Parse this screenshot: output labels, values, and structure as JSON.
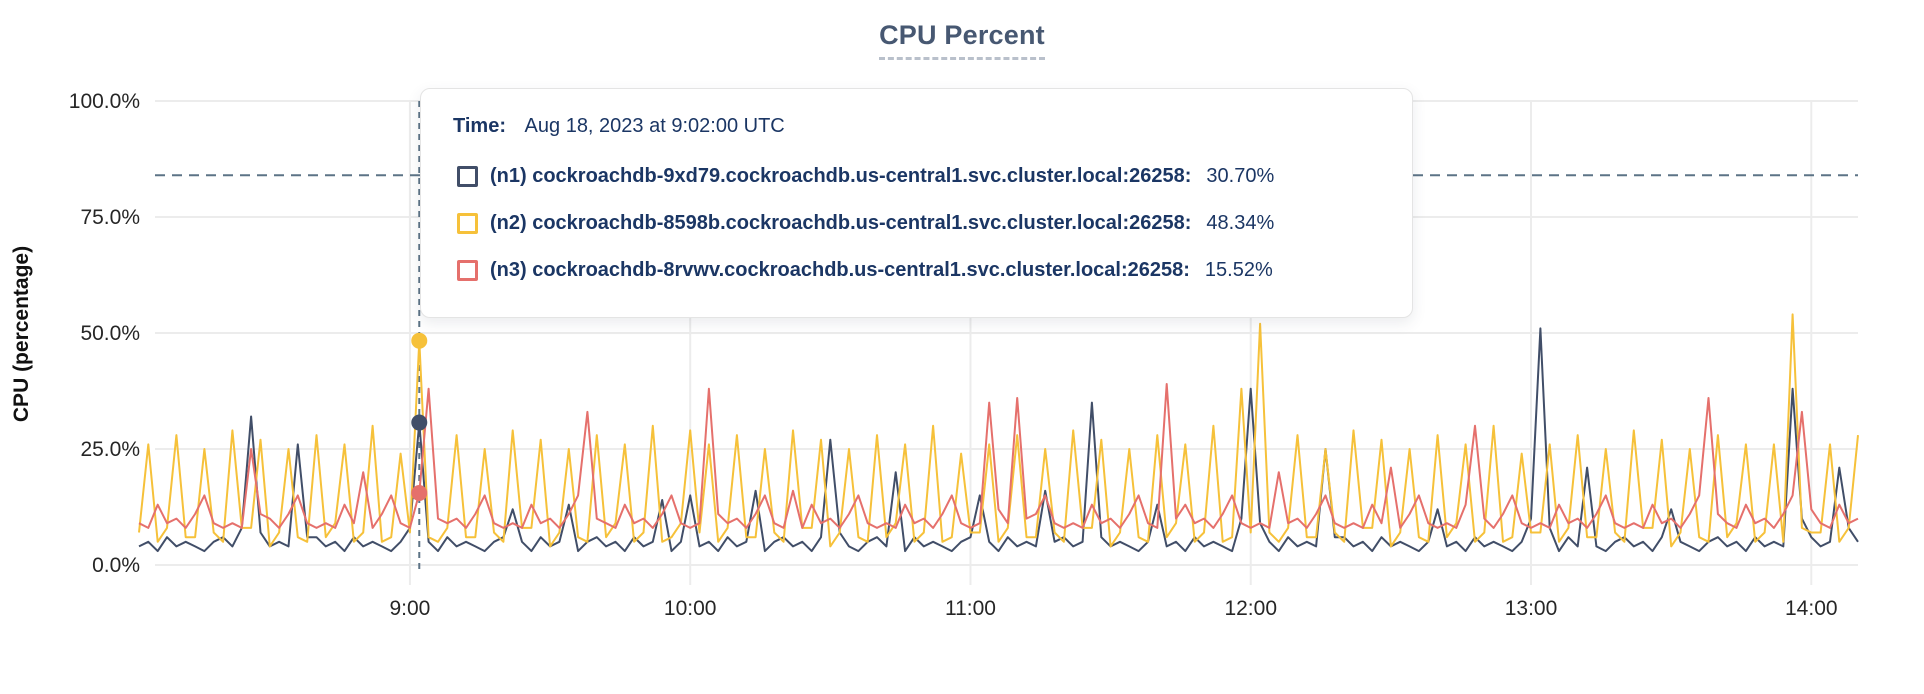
{
  "title": "CPU Percent",
  "y_axis_title": "CPU (percentage)",
  "tooltip": {
    "time_label": "Time:",
    "time_value": "Aug 18, 2023 at 9:02:00 UTC",
    "rows": [
      {
        "label": "(n1) cockroachdb-9xd79.cockroachdb.us-central1.svc.cluster.local:26258:",
        "value": "30.70%",
        "color": "#414E68"
      },
      {
        "label": "(n2) cockroachdb-8598b.cockroachdb.us-central1.svc.cluster.local:26258:",
        "value": "48.34%",
        "color": "#F6C13A"
      },
      {
        "label": "(n3) cockroachdb-8rvwv.cockroachdb.us-central1.svc.cluster.local:26258:",
        "value": "15.52%",
        "color": "#E5706C"
      }
    ]
  },
  "colors": {
    "title": "#475872",
    "grid": "#ececec",
    "dashed_guides": "#5c7386",
    "tooltip_text": "#1b3664"
  },
  "chart_data": {
    "type": "line",
    "title": "CPU Percent",
    "xlabel": "",
    "ylabel": "CPU (percentage)",
    "ylim": [
      0,
      100
    ],
    "y_tick_values": [
      0,
      25,
      50,
      75,
      100
    ],
    "y_tick_labels": [
      "0.0%",
      "25.0%",
      "50.0%",
      "75.0%",
      "100.0%"
    ],
    "x_tick_labels": [
      "9:00",
      "10:00",
      "11:00",
      "12:00",
      "13:00",
      "14:00"
    ],
    "x_tick_minutes": [
      540,
      600,
      660,
      720,
      780,
      840
    ],
    "x_range_minutes": [
      482,
      850
    ],
    "x_start_minute": 482,
    "x_step_minutes": 2,
    "grid": true,
    "legend_position": "tooltip-overlay",
    "threshold_line_percent": 84,
    "crosshair": {
      "minute": 542,
      "time_label": "Aug 18, 2023 at 9:02:00 UTC",
      "values": [
        30.7,
        48.34,
        15.52
      ]
    },
    "series": [
      {
        "name": "(n1) cockroachdb-9xd79.cockroachdb.us-central1.svc.cluster.local:26258",
        "color": "#414E68",
        "values": [
          4,
          5,
          3,
          6,
          4,
          5,
          4,
          3,
          5,
          6,
          4,
          8,
          32,
          7,
          4,
          5,
          4,
          26,
          6,
          6,
          4,
          5,
          3,
          6,
          4,
          5,
          4,
          3,
          5,
          8,
          30.7,
          5,
          3,
          6,
          4,
          5,
          4,
          3,
          5,
          6,
          12,
          5,
          3,
          6,
          4,
          5,
          13,
          3,
          5,
          6,
          4,
          5,
          3,
          6,
          4,
          5,
          14,
          3,
          5,
          15,
          4,
          5,
          3,
          6,
          4,
          5,
          16,
          3,
          5,
          6,
          4,
          5,
          3,
          6,
          27,
          7,
          4,
          3,
          5,
          6,
          4,
          20,
          3,
          6,
          4,
          5,
          4,
          3,
          5,
          6,
          15,
          5,
          3,
          6,
          4,
          5,
          4,
          16,
          5,
          6,
          4,
          5,
          35,
          6,
          4,
          5,
          4,
          3,
          5,
          13,
          4,
          5,
          3,
          6,
          4,
          5,
          4,
          3,
          10,
          38,
          9,
          5,
          3,
          6,
          4,
          5,
          4,
          25,
          6,
          6,
          4,
          5,
          3,
          6,
          4,
          5,
          4,
          3,
          5,
          12,
          4,
          5,
          3,
          6,
          4,
          5,
          4,
          3,
          5,
          10,
          51,
          8,
          3,
          6,
          4,
          21,
          4,
          3,
          5,
          6,
          4,
          5,
          3,
          6,
          12,
          5,
          4,
          3,
          5,
          6,
          4,
          5,
          3,
          6,
          4,
          5,
          4,
          38,
          10,
          6,
          4,
          5,
          21,
          8,
          5
        ]
      },
      {
        "name": "(n2) cockroachdb-8598b.cockroachdb.us-central1.svc.cluster.local:26258",
        "color": "#F6C13A",
        "values": [
          7,
          26,
          5,
          8,
          28,
          6,
          6,
          25,
          7,
          5,
          29,
          8,
          8,
          27,
          4,
          7,
          25,
          6,
          5,
          28,
          6,
          9,
          26,
          5,
          7,
          30,
          5,
          6,
          24,
          7,
          48.34,
          6,
          5,
          8,
          28,
          6,
          6,
          25,
          7,
          5,
          29,
          8,
          8,
          27,
          4,
          7,
          25,
          6,
          5,
          28,
          6,
          9,
          26,
          5,
          7,
          30,
          5,
          6,
          9,
          29,
          7,
          26,
          5,
          8,
          28,
          6,
          6,
          25,
          7,
          5,
          29,
          8,
          8,
          27,
          4,
          7,
          25,
          6,
          5,
          28,
          6,
          9,
          26,
          5,
          7,
          30,
          5,
          6,
          24,
          7,
          7,
          26,
          5,
          8,
          28,
          6,
          6,
          25,
          7,
          5,
          29,
          8,
          8,
          27,
          4,
          7,
          25,
          6,
          5,
          28,
          6,
          9,
          26,
          5,
          7,
          30,
          5,
          6,
          38,
          7,
          52,
          7,
          5,
          8,
          28,
          6,
          6,
          25,
          7,
          5,
          29,
          8,
          8,
          27,
          4,
          7,
          25,
          6,
          5,
          28,
          6,
          9,
          26,
          5,
          7,
          30,
          5,
          6,
          24,
          7,
          7,
          26,
          5,
          8,
          28,
          6,
          6,
          25,
          7,
          5,
          29,
          8,
          8,
          27,
          4,
          7,
          25,
          6,
          5,
          28,
          6,
          9,
          26,
          5,
          7,
          26,
          5,
          54,
          8,
          7,
          7,
          26,
          5,
          8,
          28
        ]
      },
      {
        "name": "(n3) cockroachdb-8rvwv.cockroachdb.us-central1.svc.cluster.local:26258",
        "color": "#E5706C",
        "values": [
          9,
          8,
          13,
          9,
          10,
          8,
          11,
          15,
          9,
          8,
          9,
          8,
          25,
          11,
          10,
          8,
          11,
          15,
          9,
          8,
          9,
          8,
          13,
          9,
          20,
          8,
          11,
          15,
          9,
          8,
          15.52,
          38,
          10,
          9,
          10,
          8,
          11,
          15,
          9,
          8,
          9,
          8,
          13,
          9,
          10,
          8,
          11,
          15,
          33,
          10,
          9,
          8,
          13,
          9,
          10,
          8,
          11,
          15,
          9,
          8,
          9,
          38,
          11,
          9,
          10,
          8,
          11,
          15,
          9,
          8,
          16,
          8,
          13,
          9,
          10,
          8,
          11,
          15,
          9,
          8,
          9,
          8,
          13,
          9,
          10,
          8,
          11,
          15,
          9,
          8,
          9,
          35,
          12,
          9,
          36,
          10,
          11,
          15,
          9,
          8,
          9,
          8,
          13,
          9,
          10,
          8,
          11,
          15,
          9,
          8,
          39,
          10,
          13,
          9,
          10,
          8,
          11,
          15,
          9,
          8,
          9,
          8,
          20,
          9,
          10,
          8,
          11,
          15,
          9,
          8,
          9,
          8,
          13,
          9,
          21,
          8,
          11,
          15,
          9,
          8,
          9,
          8,
          13,
          30,
          10,
          8,
          11,
          15,
          9,
          8,
          9,
          8,
          13,
          9,
          10,
          8,
          11,
          15,
          9,
          8,
          9,
          8,
          13,
          9,
          10,
          8,
          11,
          15,
          36,
          11,
          9,
          8,
          13,
          9,
          10,
          8,
          11,
          15,
          33,
          12,
          9,
          8,
          13,
          9,
          10
        ]
      }
    ]
  }
}
